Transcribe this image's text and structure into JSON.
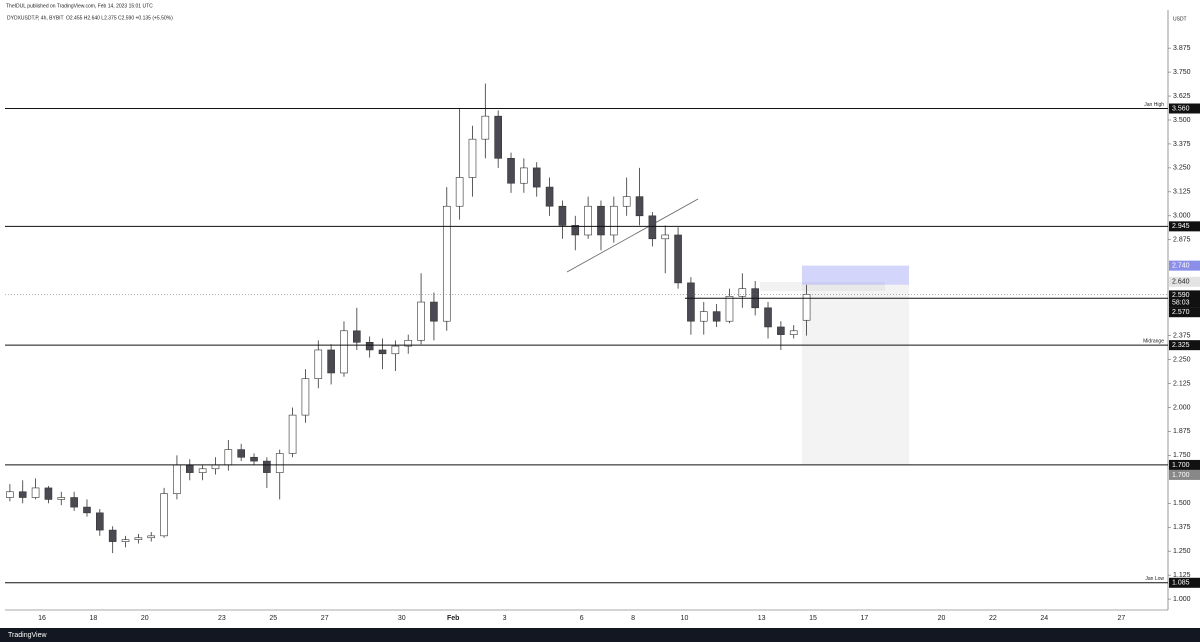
{
  "header": {
    "publisher": "TheIDUL published on TradingView.com, Feb 14, 2023 15:01 UTC"
  },
  "footer": {
    "brand": "TradingView"
  },
  "chart_data": {
    "type": "candlestick",
    "symbol": "DYDXUSDT.P, 4h, BYBIT",
    "ohlc_text": "O2.455 H2.640 L2.375 C2.590 +0.135 (+5.50%)",
    "currency": "USDT",
    "categories": [
      null,
      null,
      null,
      "16",
      null,
      null,
      null,
      "18",
      null,
      null,
      null,
      "20",
      null,
      null,
      null,
      null,
      null,
      "23",
      null,
      null,
      null,
      "25",
      null,
      null,
      null,
      "27",
      null,
      null,
      null,
      null,
      null,
      "30",
      null,
      null,
      null,
      "Feb",
      null,
      null,
      null,
      "3",
      null,
      null,
      null,
      null,
      null,
      "6",
      null,
      null,
      null,
      "8",
      null,
      null,
      null,
      "10",
      null,
      null,
      null,
      null,
      null,
      "13",
      null,
      null,
      null,
      "15",
      null,
      null,
      null,
      "17",
      null,
      null,
      null,
      null,
      null,
      "20",
      null,
      null,
      null,
      "22",
      null,
      null,
      null,
      "24",
      null,
      null,
      null,
      null,
      null,
      "27",
      null,
      null
    ],
    "open": [
      1.53,
      1.56,
      1.53,
      1.58,
      1.52,
      1.53,
      1.48,
      1.45,
      1.36,
      1.3,
      1.31,
      1.32,
      1.33,
      1.55,
      1.7,
      1.66,
      1.68,
      1.7,
      1.78,
      1.74,
      1.72,
      1.66,
      1.76,
      1.96,
      2.15,
      2.3,
      2.18,
      2.4,
      2.34,
      2.3,
      2.28,
      2.32,
      2.35,
      2.55,
      2.45,
      3.05,
      3.2,
      3.4,
      3.52,
      3.3,
      3.17,
      3.25,
      3.15,
      3.05,
      2.95,
      2.9,
      3.05,
      2.9,
      3.05,
      3.1,
      3.0,
      2.88,
      2.9,
      2.65,
      2.45,
      2.5,
      2.45,
      2.58,
      2.62,
      2.52,
      2.42,
      2.38,
      2.455,
      null,
      null,
      null,
      null,
      null,
      null,
      null,
      null,
      null,
      null,
      null,
      null,
      null,
      null,
      null,
      null,
      null,
      null,
      null,
      null,
      null,
      null,
      null,
      null,
      null,
      null,
      null
    ],
    "high": [
      1.6,
      1.62,
      1.63,
      1.59,
      1.56,
      1.56,
      1.52,
      1.47,
      1.38,
      1.33,
      1.34,
      1.35,
      1.58,
      1.75,
      1.73,
      1.7,
      1.74,
      1.83,
      1.81,
      1.76,
      1.74,
      1.78,
      2.0,
      2.2,
      2.35,
      2.33,
      2.45,
      2.52,
      2.37,
      2.36,
      2.35,
      2.38,
      2.7,
      2.6,
      3.15,
      3.56,
      3.47,
      3.69,
      3.55,
      3.33,
      3.3,
      3.28,
      3.2,
      3.08,
      3.0,
      3.1,
      3.08,
      3.1,
      3.2,
      3.25,
      3.02,
      2.95,
      2.94,
      2.68,
      2.55,
      2.54,
      2.62,
      2.7,
      2.66,
      2.55,
      2.45,
      2.43,
      2.64,
      null,
      null,
      null,
      null,
      null,
      null,
      null,
      null,
      null,
      null,
      null,
      null,
      null,
      null,
      null,
      null,
      null,
      null,
      null,
      null,
      null,
      null,
      null,
      null,
      null,
      null,
      null
    ],
    "low": [
      1.51,
      1.5,
      1.52,
      1.5,
      1.49,
      1.46,
      1.43,
      1.33,
      1.24,
      1.27,
      1.29,
      1.3,
      1.32,
      1.52,
      1.62,
      1.62,
      1.65,
      1.67,
      1.72,
      1.7,
      1.58,
      1.52,
      1.74,
      1.92,
      2.1,
      2.12,
      2.16,
      2.3,
      2.26,
      2.2,
      2.19,
      2.28,
      2.33,
      2.35,
      2.4,
      2.98,
      3.1,
      3.3,
      3.25,
      3.12,
      3.12,
      3.1,
      3.0,
      2.88,
      2.82,
      2.88,
      2.82,
      2.86,
      3.0,
      2.95,
      2.84,
      2.7,
      2.62,
      2.38,
      2.38,
      2.42,
      2.44,
      2.52,
      2.48,
      2.36,
      2.3,
      2.36,
      2.375,
      null,
      null,
      null,
      null,
      null,
      null,
      null,
      null,
      null,
      null,
      null,
      null,
      null,
      null,
      null,
      null,
      null,
      null,
      null,
      null,
      null,
      null,
      null,
      null,
      null,
      null,
      null
    ],
    "close": [
      1.56,
      1.53,
      1.58,
      1.52,
      1.53,
      1.48,
      1.45,
      1.36,
      1.3,
      1.31,
      1.32,
      1.33,
      1.55,
      1.7,
      1.66,
      1.68,
      1.7,
      1.78,
      1.74,
      1.72,
      1.66,
      1.76,
      1.96,
      2.15,
      2.3,
      2.18,
      2.4,
      2.34,
      2.3,
      2.28,
      2.32,
      2.35,
      2.55,
      2.45,
      3.05,
      3.2,
      3.4,
      3.52,
      3.3,
      3.17,
      3.25,
      3.15,
      3.05,
      2.95,
      2.9,
      3.05,
      2.9,
      3.05,
      3.1,
      3.0,
      2.88,
      2.9,
      2.65,
      2.45,
      2.5,
      2.45,
      2.58,
      2.62,
      2.52,
      2.42,
      2.38,
      2.4,
      2.59,
      null,
      null,
      null,
      null,
      null,
      null,
      null,
      null,
      null,
      null,
      null,
      null,
      null,
      null,
      null,
      null,
      null,
      null,
      null,
      null,
      null,
      null,
      null,
      null,
      null,
      null,
      null
    ],
    "up_color": "#ffffff",
    "down_color": "#4a4a52",
    "ylim": [
      0.943,
      4.074
    ],
    "yticks": [
      {
        "value": 3.875,
        "label": "3.875"
      },
      {
        "value": 3.75,
        "label": "3.750"
      },
      {
        "value": 3.625,
        "label": "3.625"
      },
      {
        "value": 3.5,
        "label": "3.500"
      },
      {
        "value": 3.375,
        "label": "3.375"
      },
      {
        "value": 3.25,
        "label": "3.250"
      },
      {
        "value": 3.125,
        "label": "3.125"
      },
      {
        "value": 3,
        "label": "3.000"
      },
      {
        "value": 2.875,
        "label": "2.875"
      },
      {
        "value": 2.375,
        "label": "2.375"
      },
      {
        "value": 2.25,
        "label": "2.250"
      },
      {
        "value": 2.125,
        "label": "2.125"
      },
      {
        "value": 2,
        "label": "2.000"
      },
      {
        "value": 1.875,
        "label": "1.875"
      },
      {
        "value": 1.75,
        "label": "1.750"
      },
      {
        "value": 1.5,
        "label": "1.500"
      },
      {
        "value": 1.375,
        "label": "1.375"
      },
      {
        "value": 1.25,
        "label": "1.250"
      },
      {
        "value": 1.125,
        "label": "1.125"
      },
      {
        "value": 1,
        "label": "1.000"
      }
    ],
    "levels": [
      {
        "name": "Jan High",
        "value": 3.56,
        "label": "3.560"
      },
      {
        "value": 2.945,
        "label": "2.945"
      },
      {
        "name": "Midrange",
        "value": 2.325,
        "label": "2.325"
      },
      {
        "value": 1.7,
        "label": "1.700"
      },
      {
        "name": "Jan Low",
        "value": 1.085,
        "label": "1.085"
      }
    ],
    "last_price": {
      "value": 2.59,
      "label": "2.590",
      "countdown": "58:03"
    },
    "support": {
      "value": 2.57,
      "label": "2.570"
    },
    "position": {
      "stop": {
        "value": 2.74,
        "label": "2.740"
      },
      "entry": {
        "value": 2.64,
        "label": "2.640"
      },
      "target": {
        "value": 1.7,
        "label": "1.700"
      }
    }
  }
}
